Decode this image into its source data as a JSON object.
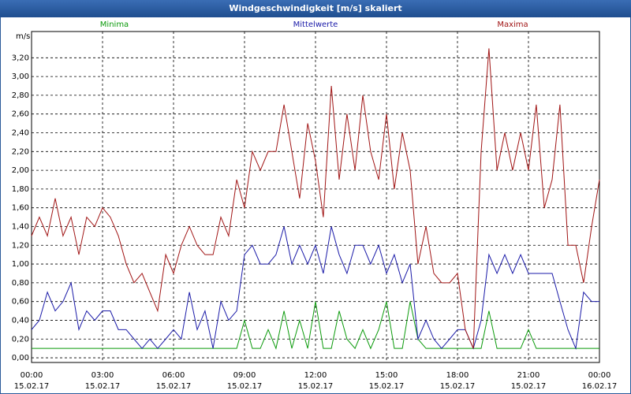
{
  "chart_data": {
    "type": "line",
    "title": "Windgeschwindigkeit [m/s] skaliert",
    "y_label": "m/s",
    "x": [
      0,
      0.33,
      0.67,
      1,
      1.33,
      1.67,
      2,
      2.33,
      2.67,
      3,
      3.33,
      3.67,
      4,
      4.33,
      4.67,
      5,
      5.33,
      5.67,
      6,
      6.33,
      6.67,
      7,
      7.33,
      7.67,
      8,
      8.33,
      8.67,
      9,
      9.33,
      9.67,
      10,
      10.33,
      10.67,
      11,
      11.33,
      11.67,
      12,
      12.33,
      12.67,
      13,
      13.33,
      13.67,
      14,
      14.33,
      14.67,
      15,
      15.33,
      15.67,
      16,
      16.33,
      16.67,
      17,
      17.33,
      17.67,
      18,
      18.33,
      18.67,
      19,
      19.33,
      19.67,
      20,
      20.33,
      20.67,
      21,
      21.33,
      21.67,
      22,
      22.33,
      22.67,
      23,
      23.33,
      23.67,
      24
    ],
    "series": [
      {
        "name": "Minima",
        "color": "#0a9a0a",
        "values": [
          0.1,
          0.1,
          0.1,
          0.1,
          0.1,
          0.1,
          0.1,
          0.1,
          0.1,
          0.1,
          0.1,
          0.1,
          0.1,
          0.1,
          0.1,
          0.1,
          0.1,
          0.1,
          0.1,
          0.1,
          0.1,
          0.1,
          0.1,
          0.1,
          0.1,
          0.1,
          0.1,
          0.4,
          0.1,
          0.1,
          0.3,
          0.1,
          0.5,
          0.1,
          0.4,
          0.1,
          0.6,
          0.1,
          0.1,
          0.5,
          0.2,
          0.1,
          0.3,
          0.1,
          0.3,
          0.6,
          0.1,
          0.1,
          0.6,
          0.2,
          0.1,
          0.1,
          0.1,
          0.1,
          0.1,
          0.1,
          0.1,
          0.1,
          0.5,
          0.1,
          0.1,
          0.1,
          0.1,
          0.3,
          0.1,
          0.1,
          0.1,
          0.1,
          0.1,
          0.1,
          0.1,
          0.1,
          0.1
        ]
      },
      {
        "name": "Mittelwerte",
        "color": "#1a1aa8",
        "values": [
          0.3,
          0.4,
          0.7,
          0.5,
          0.6,
          0.8,
          0.3,
          0.5,
          0.4,
          0.5,
          0.5,
          0.3,
          0.3,
          0.2,
          0.1,
          0.2,
          0.1,
          0.2,
          0.3,
          0.2,
          0.7,
          0.3,
          0.5,
          0.1,
          0.6,
          0.4,
          0.5,
          1.1,
          1.2,
          1.0,
          1.0,
          1.1,
          1.4,
          1.0,
          1.2,
          1.0,
          1.2,
          0.9,
          1.4,
          1.1,
          0.9,
          1.2,
          1.2,
          1.0,
          1.2,
          0.9,
          1.1,
          0.8,
          1.0,
          0.2,
          0.4,
          0.2,
          0.1,
          0.2,
          0.3,
          0.3,
          0.1,
          0.4,
          1.1,
          0.9,
          1.1,
          0.9,
          1.1,
          0.9,
          0.9,
          0.9,
          0.9,
          0.6,
          0.3,
          0.1,
          0.7,
          0.6,
          0.6
        ]
      },
      {
        "name": "Maxima",
        "color": "#a01414",
        "values": [
          1.3,
          1.5,
          1.3,
          1.7,
          1.3,
          1.5,
          1.1,
          1.5,
          1.4,
          1.6,
          1.5,
          1.3,
          1.0,
          0.8,
          0.9,
          0.7,
          0.5,
          1.1,
          0.9,
          1.2,
          1.4,
          1.2,
          1.1,
          1.1,
          1.5,
          1.3,
          1.9,
          1.6,
          2.2,
          2.0,
          2.2,
          2.2,
          2.7,
          2.2,
          1.7,
          2.5,
          2.1,
          1.5,
          2.9,
          1.9,
          2.6,
          2.0,
          2.8,
          2.2,
          1.9,
          2.6,
          1.8,
          2.4,
          2.0,
          1.0,
          1.4,
          0.9,
          0.8,
          0.8,
          0.9,
          0.3,
          0.1,
          2.2,
          3.3,
          2.0,
          2.4,
          2.0,
          2.4,
          2.0,
          2.7,
          1.6,
          1.9,
          2.7,
          1.2,
          1.2,
          0.8,
          1.4,
          1.9
        ]
      }
    ],
    "xlim": [
      0,
      24
    ],
    "xticks": [
      {
        "value": 0,
        "label": "00:00"
      },
      {
        "value": 3,
        "label": "03:00"
      },
      {
        "value": 6,
        "label": "06:00"
      },
      {
        "value": 9,
        "label": "09:00"
      },
      {
        "value": 12,
        "label": "12:00"
      },
      {
        "value": 15,
        "label": "15:00"
      },
      {
        "value": 18,
        "label": "18:00"
      },
      {
        "value": 21,
        "label": "21:00"
      },
      {
        "value": 24,
        "label": "00:00"
      }
    ],
    "xtick_dates": [
      "15.02.17",
      "15.02.17",
      "15.02.17",
      "15.02.17",
      "15.02.17",
      "15.02.17",
      "15.02.17",
      "15.02.17",
      "16.02.17"
    ],
    "ylim": [
      -0.05,
      3.48
    ],
    "yticks": [
      {
        "value": 0,
        "label": "0,00"
      },
      {
        "value": 0.2,
        "label": "0,20"
      },
      {
        "value": 0.4,
        "label": "0,40"
      },
      {
        "value": 0.6,
        "label": "0,60"
      },
      {
        "value": 0.8,
        "label": "0,80"
      },
      {
        "value": 1.0,
        "label": "1,00"
      },
      {
        "value": 1.2,
        "label": "1,20"
      },
      {
        "value": 1.4,
        "label": "1,40"
      },
      {
        "value": 1.6,
        "label": "1,60"
      },
      {
        "value": 1.8,
        "label": "1,80"
      },
      {
        "value": 2.0,
        "label": "2,00"
      },
      {
        "value": 2.2,
        "label": "2,20"
      },
      {
        "value": 2.4,
        "label": "2,40"
      },
      {
        "value": 2.6,
        "label": "2,60"
      },
      {
        "value": 2.8,
        "label": "2,80"
      },
      {
        "value": 3.0,
        "label": "3,00"
      },
      {
        "value": 3.2,
        "label": "3,20"
      }
    ],
    "grid": true
  }
}
